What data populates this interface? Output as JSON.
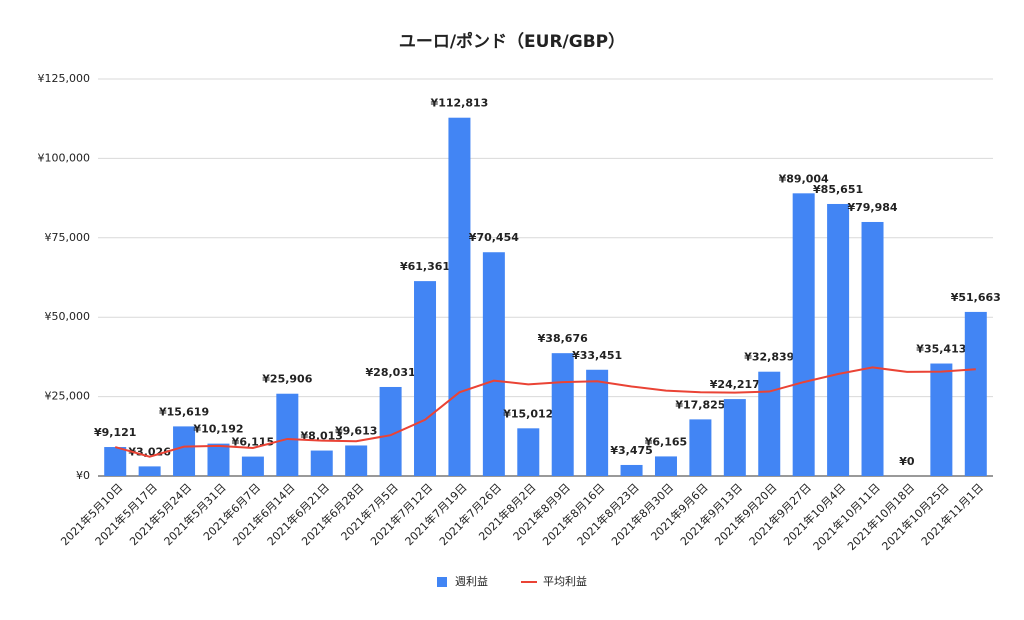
{
  "chart_data": {
    "type": "bar",
    "title": "ユーロ/ポンド（EUR/GBP）",
    "categories": [
      "2021年5月10日",
      "2021年5月17日",
      "2021年5月24日",
      "2021年5月31日",
      "2021年6月7日",
      "2021年6月14日",
      "2021年6月21日",
      "2021年6月28日",
      "2021年7月5日",
      "2021年7月12日",
      "2021年7月19日",
      "2021年7月26日",
      "2021年8月2日",
      "2021年8月9日",
      "2021年8月16日",
      "2021年8月23日",
      "2021年8月30日",
      "2021年9月6日",
      "2021年9月13日",
      "2021年9月20日",
      "2021年9月27日",
      "2021年10月4日",
      "2021年10月11日",
      "2021年10月18日",
      "2021年10月25日",
      "2021年11月1日"
    ],
    "series": [
      {
        "name": "週利益",
        "type": "bar",
        "color": "#4285f4",
        "values": [
          9121,
          3026,
          15619,
          10192,
          6115,
          25906,
          8013,
          9613,
          28031,
          61361,
          112813,
          70454,
          15012,
          38676,
          33451,
          3475,
          6165,
          17825,
          24217,
          32839,
          89004,
          85651,
          79984,
          0,
          35413,
          51663
        ],
        "value_labels": [
          "¥9,121",
          "¥3,026",
          "¥15,619",
          "¥10,192",
          "¥6,115",
          "¥25,906",
          "¥8,013",
          "¥9,613",
          "¥28,031",
          "¥61,361",
          "¥112,813",
          "¥70,454",
          "¥15,012",
          "¥38,676",
          "¥33,451",
          "¥3,475",
          "¥6,165",
          "¥17,825",
          "¥24,217",
          "¥32,839",
          "¥89,004",
          "¥85,651",
          "¥79,984",
          "¥0",
          "¥35,413",
          "¥51,663"
        ]
      },
      {
        "name": "平均利益",
        "type": "line",
        "color": "#ea4335",
        "values": [
          9121,
          6074,
          9255,
          9490,
          8815,
          11663,
          11142,
          10951,
          12848,
          17700,
          26346,
          30022,
          28867,
          29568,
          29827,
          28180,
          26885,
          26382,
          26268,
          26596,
          29568,
          32117,
          34198,
          32773,
          32879,
          33601
        ]
      }
    ],
    "ylim": [
      0,
      125000
    ],
    "yticks": [
      {
        "value": 0,
        "label": "¥0"
      },
      {
        "value": 25000,
        "label": "¥25,000"
      },
      {
        "value": 50000,
        "label": "¥50,000"
      },
      {
        "value": 75000,
        "label": "¥75,000"
      },
      {
        "value": 100000,
        "label": "¥100,000"
      },
      {
        "value": 125000,
        "label": "¥125,000"
      }
    ],
    "grid": true,
    "legend": "bottom"
  }
}
